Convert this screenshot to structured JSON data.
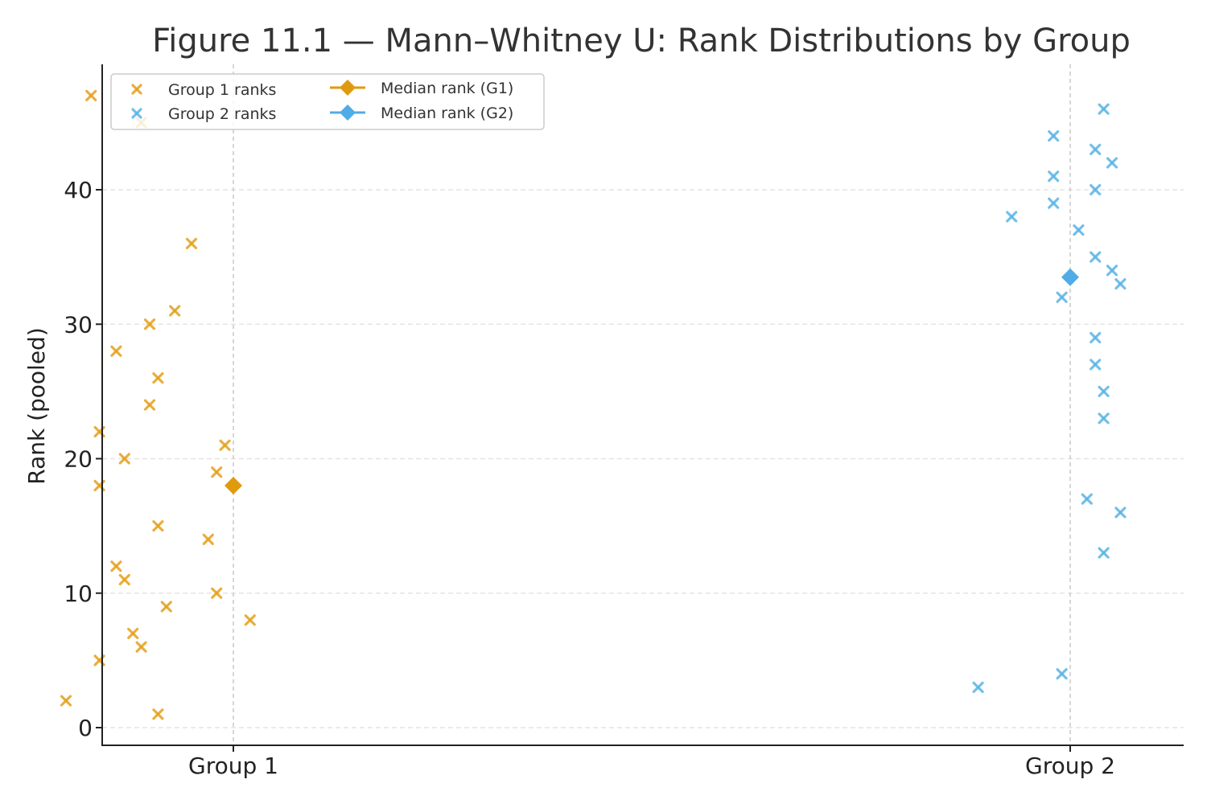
{
  "chart_data": {
    "type": "scatter",
    "title": "Figure 11.1 — Mann–Whitney U: Rank Distributions by Group",
    "xlabel": "",
    "ylabel": "Rank (pooled)",
    "categories": [
      "Group 1",
      "Group 2"
    ],
    "ylim": [
      -1.2,
      49
    ],
    "yticks": [
      0,
      10,
      20,
      30,
      40
    ],
    "grid": "y-dashed",
    "legend_position": "top-left",
    "colors": {
      "group1": "#E5A11C",
      "group2": "#5AB4E5"
    },
    "series": [
      {
        "name": "Group 1 ranks",
        "marker": "x",
        "color": "#E5A11C",
        "points": [
          {
            "x": 0.8,
            "y": 2
          },
          {
            "x": 0.84,
            "y": 5
          },
          {
            "x": 0.87,
            "y": 11
          },
          {
            "x": 0.86,
            "y": 12
          },
          {
            "x": 0.88,
            "y": 7
          },
          {
            "x": 0.89,
            "y": 6
          },
          {
            "x": 0.91,
            "y": 1
          },
          {
            "x": 0.91,
            "y": 15
          },
          {
            "x": 0.92,
            "y": 9
          },
          {
            "x": 0.97,
            "y": 14
          },
          {
            "x": 0.98,
            "y": 10
          },
          {
            "x": 1.02,
            "y": 8
          },
          {
            "x": 0.84,
            "y": 18
          },
          {
            "x": 0.87,
            "y": 20
          },
          {
            "x": 0.84,
            "y": 22
          },
          {
            "x": 0.9,
            "y": 24
          },
          {
            "x": 0.91,
            "y": 26
          },
          {
            "x": 0.86,
            "y": 28
          },
          {
            "x": 0.9,
            "y": 30
          },
          {
            "x": 0.93,
            "y": 31
          },
          {
            "x": 0.95,
            "y": 36
          },
          {
            "x": 0.98,
            "y": 19
          },
          {
            "x": 0.99,
            "y": 21
          },
          {
            "x": 0.89,
            "y": 45
          },
          {
            "x": 0.83,
            "y": 47
          }
        ]
      },
      {
        "name": "Group 2 ranks",
        "marker": "x",
        "color": "#5AB4E5",
        "points": [
          {
            "x": 1.89,
            "y": 3
          },
          {
            "x": 1.99,
            "y": 4
          },
          {
            "x": 2.04,
            "y": 13
          },
          {
            "x": 2.06,
            "y": 16
          },
          {
            "x": 2.02,
            "y": 17
          },
          {
            "x": 2.04,
            "y": 23
          },
          {
            "x": 2.04,
            "y": 25
          },
          {
            "x": 2.03,
            "y": 27
          },
          {
            "x": 2.03,
            "y": 29
          },
          {
            "x": 1.99,
            "y": 32
          },
          {
            "x": 2.06,
            "y": 33
          },
          {
            "x": 2.05,
            "y": 34
          },
          {
            "x": 2.03,
            "y": 35
          },
          {
            "x": 2.01,
            "y": 37
          },
          {
            "x": 1.93,
            "y": 38
          },
          {
            "x": 1.98,
            "y": 39
          },
          {
            "x": 2.03,
            "y": 40
          },
          {
            "x": 1.98,
            "y": 41
          },
          {
            "x": 2.05,
            "y": 42
          },
          {
            "x": 2.03,
            "y": 43
          },
          {
            "x": 1.98,
            "y": 44
          },
          {
            "x": 2.04,
            "y": 46
          }
        ]
      },
      {
        "name": "Median rank (G1)",
        "marker": "diamond",
        "color": "#E09A0E",
        "points": [
          {
            "x": 1,
            "y": 18
          }
        ]
      },
      {
        "name": "Median rank (G2)",
        "marker": "diamond",
        "color": "#50ACE6",
        "points": [
          {
            "x": 2,
            "y": 33.5
          }
        ]
      }
    ]
  }
}
